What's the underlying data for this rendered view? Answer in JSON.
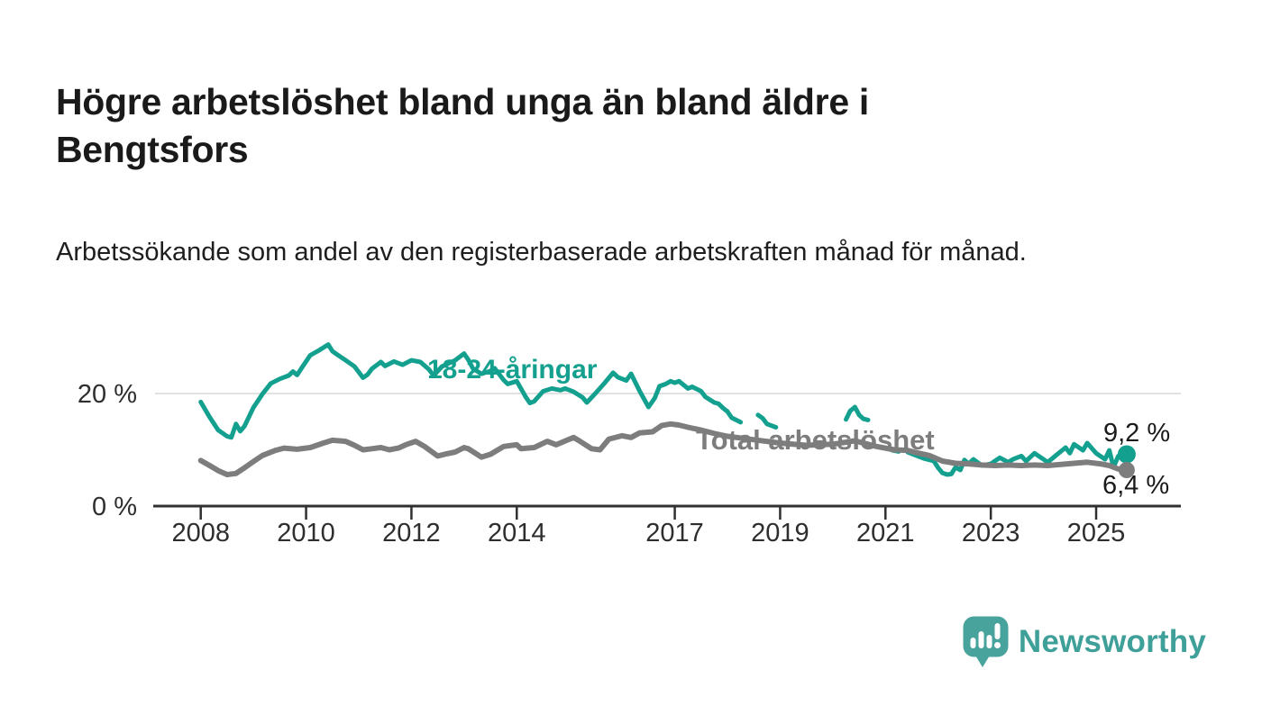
{
  "page": {
    "title": "Högre arbetslöshet bland unga än bland äldre i Bengtsfors",
    "subtitle": "Arbetssökande som andel av den registerbaserade arbetskraften månad för månad."
  },
  "branding": {
    "logo_text": "Newsworthy",
    "logo_icon": "speech-bubble-bar-chart-icon",
    "bubble_color": "#48a39d",
    "wordmark_color": "#3f9f99"
  },
  "colors": {
    "youth_line": "#13a08f",
    "total_line": "#7d7d7d",
    "axis": "#303030",
    "grid": "#d8d8d8",
    "tick_text": "#2e2e2e",
    "value_label_text": "#1a1a1a"
  },
  "chart_data": {
    "type": "line",
    "title": "Högre arbetslöshet bland unga än bland äldre i Bengtsfors",
    "subtitle": "Arbetssökande som andel av den registerbaserade arbetskraften månad för månad.",
    "unit": "%",
    "grid": "horizontal-20-only",
    "legend_position": "inline-labels",
    "x_axis": {
      "ticks": [
        2008,
        2010,
        2012,
        2014,
        2017,
        2019,
        2021,
        2023,
        2025
      ],
      "range": [
        2007.1,
        2026.6
      ]
    },
    "y_axis": {
      "ticks": [
        {
          "value": 0,
          "label": "0 %",
          "grid": false
        },
        {
          "value": 20,
          "label": "20 %",
          "grid": true
        }
      ],
      "range": [
        0,
        33.9
      ]
    },
    "series": [
      {
        "id": "youth",
        "name": "18-24-åringar",
        "color": "#13a08f",
        "end_label": "9,2 %",
        "end_value": 9.2,
        "has_end_dot": true,
        "points": [
          [
            2008.0,
            18.5
          ],
          [
            2008.17,
            15.8
          ],
          [
            2008.33,
            13.5
          ],
          [
            2008.5,
            12.4
          ],
          [
            2008.58,
            12.2
          ],
          [
            2008.67,
            14.6
          ],
          [
            2008.75,
            13.3
          ],
          [
            2008.83,
            14.2
          ],
          [
            2009.0,
            17.5
          ],
          [
            2009.17,
            19.9
          ],
          [
            2009.33,
            21.8
          ],
          [
            2009.5,
            22.6
          ],
          [
            2009.67,
            23.2
          ],
          [
            2009.75,
            23.9
          ],
          [
            2009.83,
            23.3
          ],
          [
            2009.92,
            24.6
          ],
          [
            2010.08,
            26.8
          ],
          [
            2010.25,
            27.7
          ],
          [
            2010.42,
            28.7
          ],
          [
            2010.5,
            27.5
          ],
          [
            2010.58,
            27.0
          ],
          [
            2010.75,
            25.9
          ],
          [
            2010.92,
            24.8
          ],
          [
            2011.08,
            22.8
          ],
          [
            2011.17,
            23.4
          ],
          [
            2011.25,
            24.4
          ],
          [
            2011.42,
            25.6
          ],
          [
            2011.5,
            24.9
          ],
          [
            2011.67,
            25.7
          ],
          [
            2011.83,
            25.1
          ],
          [
            2012.0,
            25.9
          ],
          [
            2012.17,
            25.6
          ],
          [
            2012.33,
            24.3
          ],
          [
            2012.42,
            23.2
          ],
          [
            2012.58,
            24.8
          ],
          [
            2012.83,
            25.9
          ],
          [
            2013.0,
            27.1
          ],
          [
            2013.08,
            26.0
          ],
          [
            2013.17,
            24.4
          ],
          [
            2013.33,
            23.5
          ],
          [
            2013.5,
            24.0
          ],
          [
            2013.58,
            24.5
          ],
          [
            2013.75,
            22.4
          ],
          [
            2013.83,
            21.7
          ],
          [
            2014.0,
            22.2
          ],
          [
            2014.17,
            19.4
          ],
          [
            2014.25,
            18.3
          ],
          [
            2014.33,
            18.6
          ],
          [
            2014.5,
            20.4
          ],
          [
            2014.67,
            20.9
          ],
          [
            2014.83,
            20.6
          ],
          [
            2014.92,
            20.9
          ],
          [
            2015.08,
            20.3
          ],
          [
            2015.25,
            19.3
          ],
          [
            2015.33,
            18.4
          ],
          [
            2015.5,
            20.1
          ],
          [
            2015.67,
            21.9
          ],
          [
            2015.83,
            23.7
          ],
          [
            2015.92,
            22.9
          ],
          [
            2016.08,
            22.3
          ],
          [
            2016.17,
            23.5
          ],
          [
            2016.33,
            20.5
          ],
          [
            2016.5,
            17.6
          ],
          [
            2016.62,
            19.2
          ],
          [
            2016.71,
            21.3
          ],
          [
            2016.83,
            21.7
          ],
          [
            2016.92,
            22.2
          ],
          [
            2017.0,
            21.9
          ],
          [
            2017.08,
            22.2
          ],
          [
            2017.25,
            20.9
          ],
          [
            2017.33,
            21.2
          ],
          [
            2017.5,
            20.4
          ],
          [
            2017.58,
            19.4
          ],
          [
            2017.75,
            18.4
          ],
          [
            2017.83,
            18.2
          ],
          [
            2017.92,
            17.4
          ],
          [
            2018.0,
            16.8
          ],
          [
            2018.08,
            15.7
          ],
          [
            2018.25,
            14.9
          ],
          null,
          [
            2018.58,
            16.2
          ],
          [
            2018.67,
            15.6
          ],
          [
            2018.75,
            14.6
          ],
          [
            2018.92,
            14.0
          ],
          null,
          [
            2020.25,
            15.4
          ],
          [
            2020.33,
            16.9
          ],
          [
            2020.42,
            17.6
          ],
          [
            2020.5,
            16.2
          ],
          [
            2020.58,
            15.5
          ],
          [
            2020.67,
            15.3
          ],
          null,
          [
            2021.13,
            9.9
          ],
          [
            2021.25,
            9.7
          ],
          null,
          [
            2021.42,
            9.6
          ],
          [
            2021.58,
            9.0
          ],
          [
            2021.75,
            8.4
          ],
          [
            2021.92,
            8.0
          ],
          [
            2022.0,
            6.8
          ],
          [
            2022.08,
            5.9
          ],
          [
            2022.17,
            5.6
          ],
          [
            2022.25,
            5.7
          ],
          [
            2022.33,
            6.9
          ],
          [
            2022.42,
            6.4
          ],
          [
            2022.5,
            8.2
          ],
          [
            2022.58,
            7.5
          ],
          [
            2022.67,
            8.3
          ],
          [
            2022.83,
            7.2
          ],
          [
            2023.0,
            7.5
          ],
          [
            2023.17,
            8.6
          ],
          [
            2023.33,
            7.8
          ],
          [
            2023.42,
            8.3
          ],
          [
            2023.58,
            8.9
          ],
          [
            2023.67,
            8.0
          ],
          [
            2023.83,
            9.4
          ],
          [
            2024.0,
            8.3
          ],
          [
            2024.08,
            7.8
          ],
          [
            2024.25,
            9.1
          ],
          [
            2024.42,
            10.4
          ],
          [
            2024.5,
            9.4
          ],
          [
            2024.58,
            11.0
          ],
          [
            2024.75,
            9.9
          ],
          [
            2024.83,
            11.2
          ],
          [
            2025.0,
            9.4
          ],
          [
            2025.17,
            8.3
          ],
          [
            2025.25,
            9.9
          ],
          [
            2025.33,
            6.9
          ],
          [
            2025.42,
            8.9
          ],
          [
            2025.58,
            9.2
          ]
        ]
      },
      {
        "id": "total",
        "name": "Total arbetslöshet",
        "color": "#7d7d7d",
        "end_label": "6,4 %",
        "end_value": 6.4,
        "has_end_dot": true,
        "points": [
          [
            2008.0,
            8.1
          ],
          [
            2008.17,
            7.2
          ],
          [
            2008.33,
            6.3
          ],
          [
            2008.5,
            5.6
          ],
          [
            2008.67,
            5.8
          ],
          [
            2008.83,
            6.8
          ],
          [
            2009.0,
            7.9
          ],
          [
            2009.17,
            9.0
          ],
          [
            2009.42,
            9.9
          ],
          [
            2009.58,
            10.3
          ],
          [
            2009.83,
            10.1
          ],
          [
            2010.08,
            10.4
          ],
          [
            2010.33,
            11.2
          ],
          [
            2010.5,
            11.7
          ],
          [
            2010.75,
            11.5
          ],
          [
            2010.92,
            10.8
          ],
          [
            2011.08,
            10.0
          ],
          [
            2011.25,
            10.2
          ],
          [
            2011.42,
            10.4
          ],
          [
            2011.58,
            10.0
          ],
          [
            2011.75,
            10.3
          ],
          [
            2011.92,
            11.0
          ],
          [
            2012.08,
            11.5
          ],
          [
            2012.25,
            10.6
          ],
          [
            2012.5,
            8.9
          ],
          [
            2012.67,
            9.3
          ],
          [
            2012.83,
            9.6
          ],
          [
            2013.0,
            10.4
          ],
          [
            2013.08,
            10.2
          ],
          [
            2013.33,
            8.7
          ],
          [
            2013.5,
            9.2
          ],
          [
            2013.75,
            10.6
          ],
          [
            2014.0,
            10.9
          ],
          [
            2014.08,
            10.2
          ],
          [
            2014.33,
            10.4
          ],
          [
            2014.58,
            11.5
          ],
          [
            2014.75,
            10.9
          ],
          [
            2014.95,
            11.7
          ],
          [
            2015.08,
            12.2
          ],
          [
            2015.17,
            11.7
          ],
          [
            2015.42,
            10.2
          ],
          [
            2015.58,
            10.0
          ],
          [
            2015.75,
            11.9
          ],
          [
            2016.0,
            12.5
          ],
          [
            2016.17,
            12.2
          ],
          [
            2016.33,
            13.0
          ],
          [
            2016.58,
            13.2
          ],
          [
            2016.75,
            14.3
          ],
          [
            2016.92,
            14.6
          ],
          [
            2017.08,
            14.4
          ],
          [
            2017.25,
            14.0
          ],
          [
            2017.5,
            13.5
          ],
          [
            2017.75,
            12.9
          ],
          [
            2018.0,
            12.4
          ],
          [
            2018.5,
            11.8
          ],
          [
            2019.0,
            11.2
          ],
          [
            2019.5,
            10.8
          ],
          [
            2020.0,
            11.0
          ],
          [
            2020.42,
            11.6
          ],
          [
            2020.83,
            10.6
          ],
          [
            2021.17,
            10.0
          ],
          [
            2021.42,
            9.9
          ],
          [
            2021.58,
            9.5
          ],
          [
            2021.83,
            9.0
          ],
          [
            2022.08,
            8.0
          ],
          [
            2022.33,
            7.6
          ],
          [
            2022.58,
            7.5
          ],
          [
            2022.83,
            7.3
          ],
          [
            2023.08,
            7.2
          ],
          [
            2023.33,
            7.3
          ],
          [
            2023.58,
            7.2
          ],
          [
            2023.83,
            7.3
          ],
          [
            2024.08,
            7.2
          ],
          [
            2024.33,
            7.4
          ],
          [
            2024.58,
            7.6
          ],
          [
            2024.83,
            7.8
          ],
          [
            2025.08,
            7.5
          ],
          [
            2025.25,
            7.2
          ],
          [
            2025.42,
            6.6
          ],
          [
            2025.58,
            6.4
          ]
        ]
      }
    ]
  }
}
